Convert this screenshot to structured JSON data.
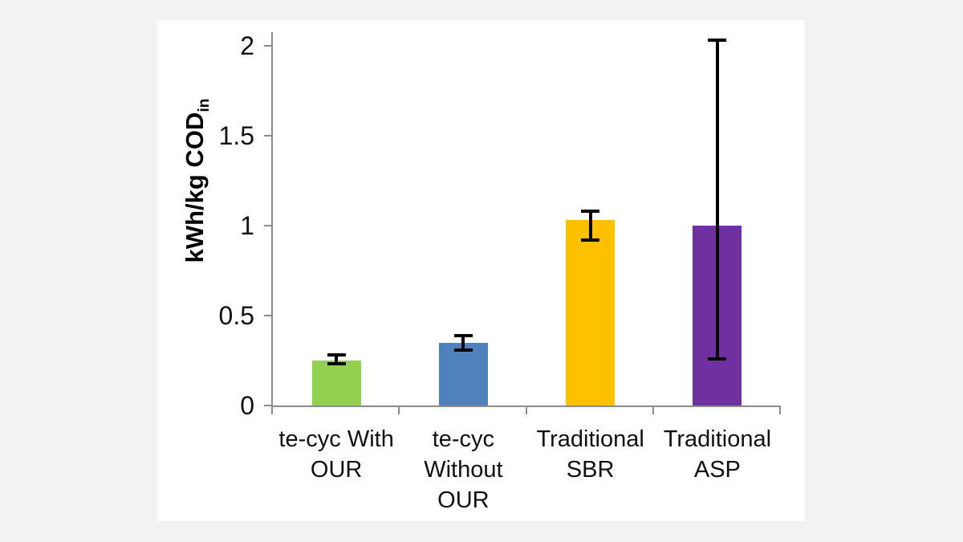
{
  "chart_data": {
    "type": "bar",
    "title": "",
    "ylabel_main": "kWh/kg COD",
    "ylabel_sub": "in",
    "categories": [
      "te-cyc With OUR",
      "te-cyc Without OUR",
      "Traditional SBR",
      "Traditional ASP"
    ],
    "category_label_lines": [
      [
        "te-cyc With",
        "OUR"
      ],
      [
        "te-cyc",
        "Without",
        "OUR"
      ],
      [
        "Traditional",
        "SBR"
      ],
      [
        "Traditional",
        "ASP"
      ]
    ],
    "values": [
      0.25,
      0.35,
      1.03,
      1.0
    ],
    "error_low": [
      0.23,
      0.31,
      0.92,
      0.26
    ],
    "error_high": [
      0.28,
      0.39,
      1.08,
      2.03
    ],
    "bar_colors": [
      "#92D050",
      "#4F81BD",
      "#FFC000",
      "#7030A0"
    ],
    "yticks": [
      0,
      0.5,
      1,
      1.5,
      2
    ],
    "ytick_labels": [
      "0",
      "0.5",
      "1",
      "1.5",
      "2"
    ],
    "ylim": [
      0,
      2.05
    ],
    "grid": "off",
    "legend": "none",
    "axis_color": "#8C8C8C",
    "error_bar_color": "#000000",
    "plot_background": "#FFFFFF",
    "page_background": "#F2F2F2"
  }
}
